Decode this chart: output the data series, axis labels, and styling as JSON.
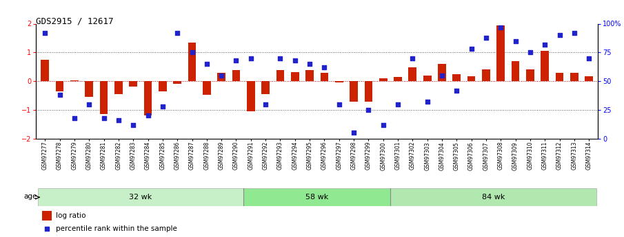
{
  "title": "GDS2915 / 12617",
  "samples": [
    "GSM97277",
    "GSM97278",
    "GSM97279",
    "GSM97280",
    "GSM97281",
    "GSM97282",
    "GSM97283",
    "GSM97284",
    "GSM97285",
    "GSM97286",
    "GSM97287",
    "GSM97288",
    "GSM97289",
    "GSM97290",
    "GSM97291",
    "GSM97292",
    "GSM97293",
    "GSM97294",
    "GSM97295",
    "GSM97296",
    "GSM97297",
    "GSM97298",
    "GSM97299",
    "GSM97300",
    "GSM97301",
    "GSM97302",
    "GSM97303",
    "GSM97304",
    "GSM97305",
    "GSM97306",
    "GSM97307",
    "GSM97308",
    "GSM97309",
    "GSM97310",
    "GSM97311",
    "GSM97312",
    "GSM97313",
    "GSM97314"
  ],
  "log_ratio": [
    0.75,
    -0.35,
    0.02,
    -0.55,
    -1.15,
    -0.45,
    -0.18,
    -1.2,
    -0.35,
    -0.08,
    1.35,
    -0.48,
    0.28,
    0.38,
    -1.05,
    -0.45,
    0.38,
    0.32,
    0.38,
    0.28,
    -0.05,
    -0.72,
    -0.72,
    0.1,
    0.15,
    0.48,
    0.2,
    0.6,
    0.25,
    0.18,
    0.42,
    1.95,
    0.7,
    0.42,
    1.05,
    0.3,
    0.28,
    0.18
  ],
  "percentile": [
    92,
    38,
    18,
    30,
    18,
    16,
    12,
    20,
    28,
    92,
    75,
    65,
    55,
    68,
    70,
    30,
    70,
    68,
    65,
    62,
    30,
    5,
    25,
    12,
    30,
    70,
    32,
    55,
    42,
    78,
    88,
    97,
    85,
    75,
    82,
    90,
    92,
    70
  ],
  "groups": [
    {
      "label": "32 wk",
      "start": 0,
      "end": 14,
      "color": "#c8f0c8"
    },
    {
      "label": "58 wk",
      "start": 14,
      "end": 24,
      "color": "#90e890"
    },
    {
      "label": "84 wk",
      "start": 24,
      "end": 38,
      "color": "#b0e8b0"
    }
  ],
  "ylim": [
    -2,
    2
  ],
  "bar_color": "#cc2200",
  "dot_color": "#2222cc",
  "bar_width": 0.55,
  "yticks_left": [
    -2,
    -1,
    0,
    1,
    2
  ],
  "yticks_right": [
    0,
    25,
    50,
    75,
    100
  ],
  "zero_line_color": "#cc0000",
  "dotted_line_color": "#555555"
}
